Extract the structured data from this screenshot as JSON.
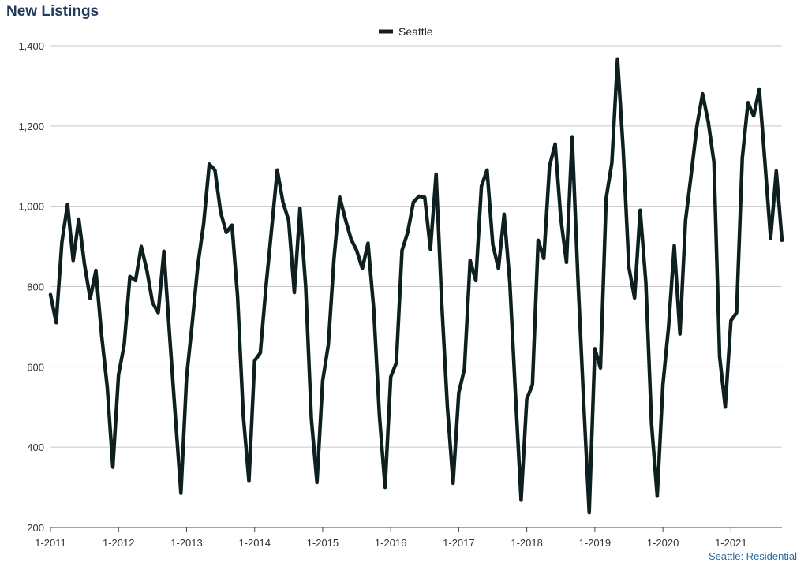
{
  "header": {
    "title": "New Listings"
  },
  "footnote": "Seattle: Residential",
  "chart_data": {
    "type": "line",
    "title": "New Listings",
    "xlabel": "",
    "ylabel": "",
    "ylim": [
      200,
      1400
    ],
    "y_ticks": [
      "200",
      "400",
      "600",
      "800",
      "1,000",
      "1,200",
      "1,400"
    ],
    "y_tick_values": [
      200,
      400,
      600,
      800,
      1000,
      1200,
      1400
    ],
    "x_tick_labels": [
      "1-2011",
      "1-2012",
      "1-2013",
      "1-2014",
      "1-2015",
      "1-2016",
      "1-2017",
      "1-2018",
      "1-2019",
      "1-2020",
      "1-2021"
    ],
    "x_start": "1-2011",
    "x_end": "10-2021",
    "grid": true,
    "legend_position": "top-center",
    "line_color": "#0d1f1f",
    "series": [
      {
        "name": "Seattle",
        "values": [
          780,
          710,
          910,
          1005,
          865,
          968,
          855,
          770,
          840,
          680,
          550,
          350,
          580,
          655,
          825,
          815,
          900,
          840,
          760,
          735,
          888,
          680,
          480,
          285,
          575,
          710,
          855,
          955,
          1105,
          1090,
          985,
          935,
          953,
          775,
          480,
          315,
          615,
          635,
          800,
          945,
          1090,
          1010,
          965,
          785,
          995,
          800,
          470,
          312,
          565,
          655,
          870,
          1023,
          968,
          918,
          890,
          845,
          908,
          745,
          480,
          300,
          575,
          610,
          890,
          935,
          1010,
          1025,
          1022,
          893,
          1080,
          760,
          500,
          310,
          535,
          595,
          865,
          815,
          1050,
          1090,
          905,
          845,
          980,
          810,
          530,
          268,
          520,
          555,
          915,
          870,
          1100,
          1155,
          970,
          860,
          1173,
          825,
          520,
          237,
          645,
          597,
          1020,
          1108,
          1367,
          1140,
          848,
          772,
          990,
          810,
          458,
          278,
          555,
          700,
          902,
          682,
          965,
          1080,
          1200,
          1280,
          1210,
          1110,
          625,
          500,
          715,
          735,
          1120,
          1258,
          1225,
          1292,
          1110,
          920,
          1088,
          915
        ]
      }
    ]
  }
}
